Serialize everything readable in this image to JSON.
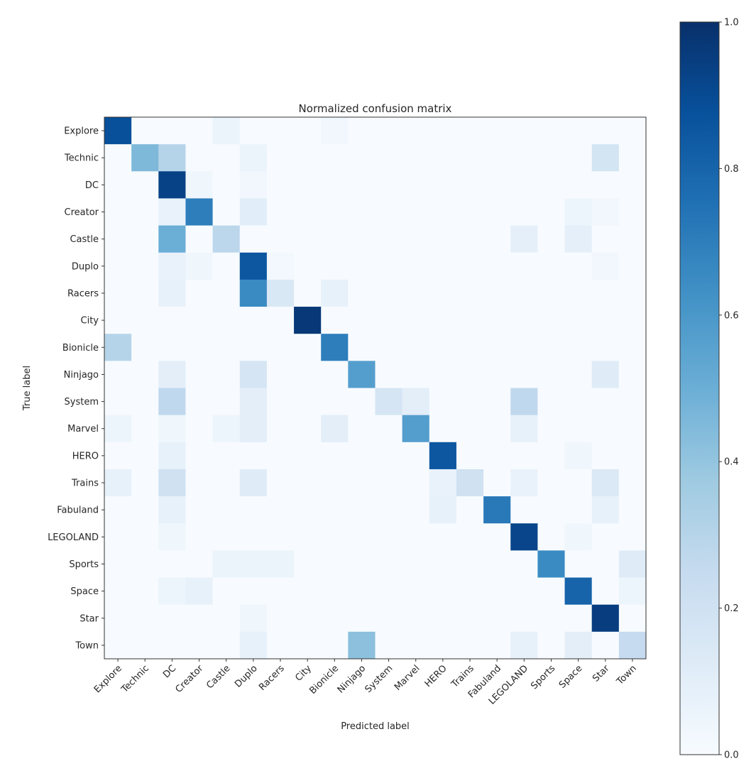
{
  "chart_data": {
    "type": "heatmap",
    "title": "Normalized confusion matrix",
    "xlabel": "Predicted label",
    "ylabel": "True label",
    "colormap": "Blues",
    "color_range": [
      0.0,
      1.0
    ],
    "colorbar_ticks": [
      "0.0",
      "0.2",
      "0.4",
      "0.6",
      "0.8",
      "1.0"
    ],
    "colorbar_tick_values": [
      0.0,
      0.2,
      0.4,
      0.6,
      0.8,
      1.0
    ],
    "x_categories": [
      "Explore",
      "Technic",
      "DC",
      "Creator",
      "Castle",
      "Duplo",
      "Racers",
      "City",
      "Bionicle",
      "Ninjago",
      "System",
      "Marvel",
      "HERO",
      "Trains",
      "Fabuland",
      "LEGOLAND",
      "Sports",
      "Space",
      "Star",
      "Town"
    ],
    "y_categories": [
      "Explore",
      "Technic",
      "DC",
      "Creator",
      "Castle",
      "Duplo",
      "Racers",
      "City",
      "Bionicle",
      "Ninjago",
      "System",
      "Marvel",
      "HERO",
      "Trains",
      "Fabuland",
      "LEGOLAND",
      "Sports",
      "Space",
      "Star",
      "Town"
    ],
    "matrix": [
      [
        0.88,
        0,
        0,
        0,
        0.06,
        0,
        0,
        0,
        0.03,
        0,
        0,
        0,
        0,
        0,
        0,
        0,
        0,
        0,
        0,
        0
      ],
      [
        0,
        0.45,
        0.3,
        0,
        0,
        0.06,
        0,
        0,
        0,
        0,
        0,
        0,
        0,
        0,
        0,
        0,
        0,
        0,
        0.18,
        0
      ],
      [
        0,
        0,
        0.93,
        0.04,
        0,
        0.03,
        0,
        0,
        0,
        0,
        0,
        0,
        0,
        0,
        0,
        0,
        0,
        0,
        0,
        0
      ],
      [
        0,
        0,
        0.07,
        0.7,
        0,
        0.11,
        0,
        0,
        0,
        0,
        0,
        0,
        0,
        0,
        0,
        0,
        0,
        0.05,
        0.03,
        0
      ],
      [
        0,
        0,
        0.5,
        0,
        0.28,
        0,
        0,
        0,
        0,
        0,
        0,
        0,
        0,
        0,
        0,
        0.09,
        0,
        0.09,
        0,
        0
      ],
      [
        0,
        0,
        0.07,
        0.04,
        0,
        0.85,
        0.02,
        0,
        0,
        0,
        0,
        0,
        0,
        0,
        0,
        0,
        0,
        0,
        0.03,
        0
      ],
      [
        0,
        0,
        0.08,
        0,
        0,
        0.65,
        0.15,
        0,
        0.08,
        0,
        0,
        0,
        0,
        0,
        0,
        0,
        0,
        0,
        0,
        0
      ],
      [
        0,
        0,
        0,
        0,
        0,
        0,
        0,
        0.97,
        0,
        0,
        0,
        0,
        0,
        0,
        0,
        0,
        0,
        0,
        0,
        0
      ],
      [
        0.3,
        0,
        0,
        0,
        0,
        0,
        0,
        0,
        0.7,
        0,
        0,
        0,
        0,
        0,
        0,
        0,
        0,
        0,
        0,
        0
      ],
      [
        0,
        0,
        0.1,
        0,
        0,
        0.17,
        0,
        0,
        0,
        0.57,
        0,
        0,
        0,
        0,
        0,
        0,
        0,
        0,
        0.12,
        0
      ],
      [
        0,
        0,
        0.27,
        0,
        0,
        0.1,
        0,
        0,
        0,
        0,
        0.17,
        0.1,
        0,
        0,
        0,
        0.27,
        0,
        0,
        0,
        0
      ],
      [
        0.05,
        0,
        0.04,
        0,
        0.05,
        0.1,
        0,
        0,
        0.1,
        0,
        0,
        0.57,
        0,
        0,
        0,
        0.08,
        0,
        0,
        0,
        0
      ],
      [
        0,
        0,
        0.08,
        0,
        0,
        0,
        0,
        0,
        0,
        0,
        0,
        0,
        0.85,
        0,
        0,
        0,
        0,
        0.04,
        0,
        0
      ],
      [
        0.08,
        0,
        0.2,
        0,
        0,
        0.12,
        0,
        0,
        0,
        0,
        0,
        0,
        0.07,
        0.2,
        0,
        0.07,
        0,
        0,
        0.14,
        0
      ],
      [
        0,
        0,
        0.08,
        0,
        0,
        0,
        0,
        0,
        0,
        0,
        0,
        0,
        0.08,
        0,
        0.72,
        0,
        0,
        0,
        0.08,
        0
      ],
      [
        0,
        0,
        0.04,
        0,
        0,
        0,
        0,
        0,
        0,
        0,
        0,
        0,
        0,
        0,
        0,
        0.92,
        0,
        0.04,
        0,
        0
      ],
      [
        0,
        0,
        0,
        0,
        0.06,
        0.06,
        0.06,
        0,
        0,
        0,
        0,
        0,
        0,
        0,
        0,
        0,
        0.65,
        0,
        0,
        0.12
      ],
      [
        0,
        0,
        0.05,
        0.08,
        0,
        0,
        0,
        0,
        0,
        0,
        0,
        0,
        0,
        0,
        0,
        0,
        0,
        0.8,
        0,
        0.05
      ],
      [
        0,
        0,
        0,
        0,
        0,
        0.04,
        0,
        0,
        0,
        0,
        0,
        0,
        0,
        0,
        0,
        0,
        0,
        0,
        0.95,
        0
      ],
      [
        0,
        0,
        0,
        0,
        0,
        0.08,
        0,
        0,
        0,
        0.42,
        0,
        0,
        0,
        0,
        0,
        0.08,
        0,
        0.1,
        0,
        0.25
      ]
    ]
  }
}
